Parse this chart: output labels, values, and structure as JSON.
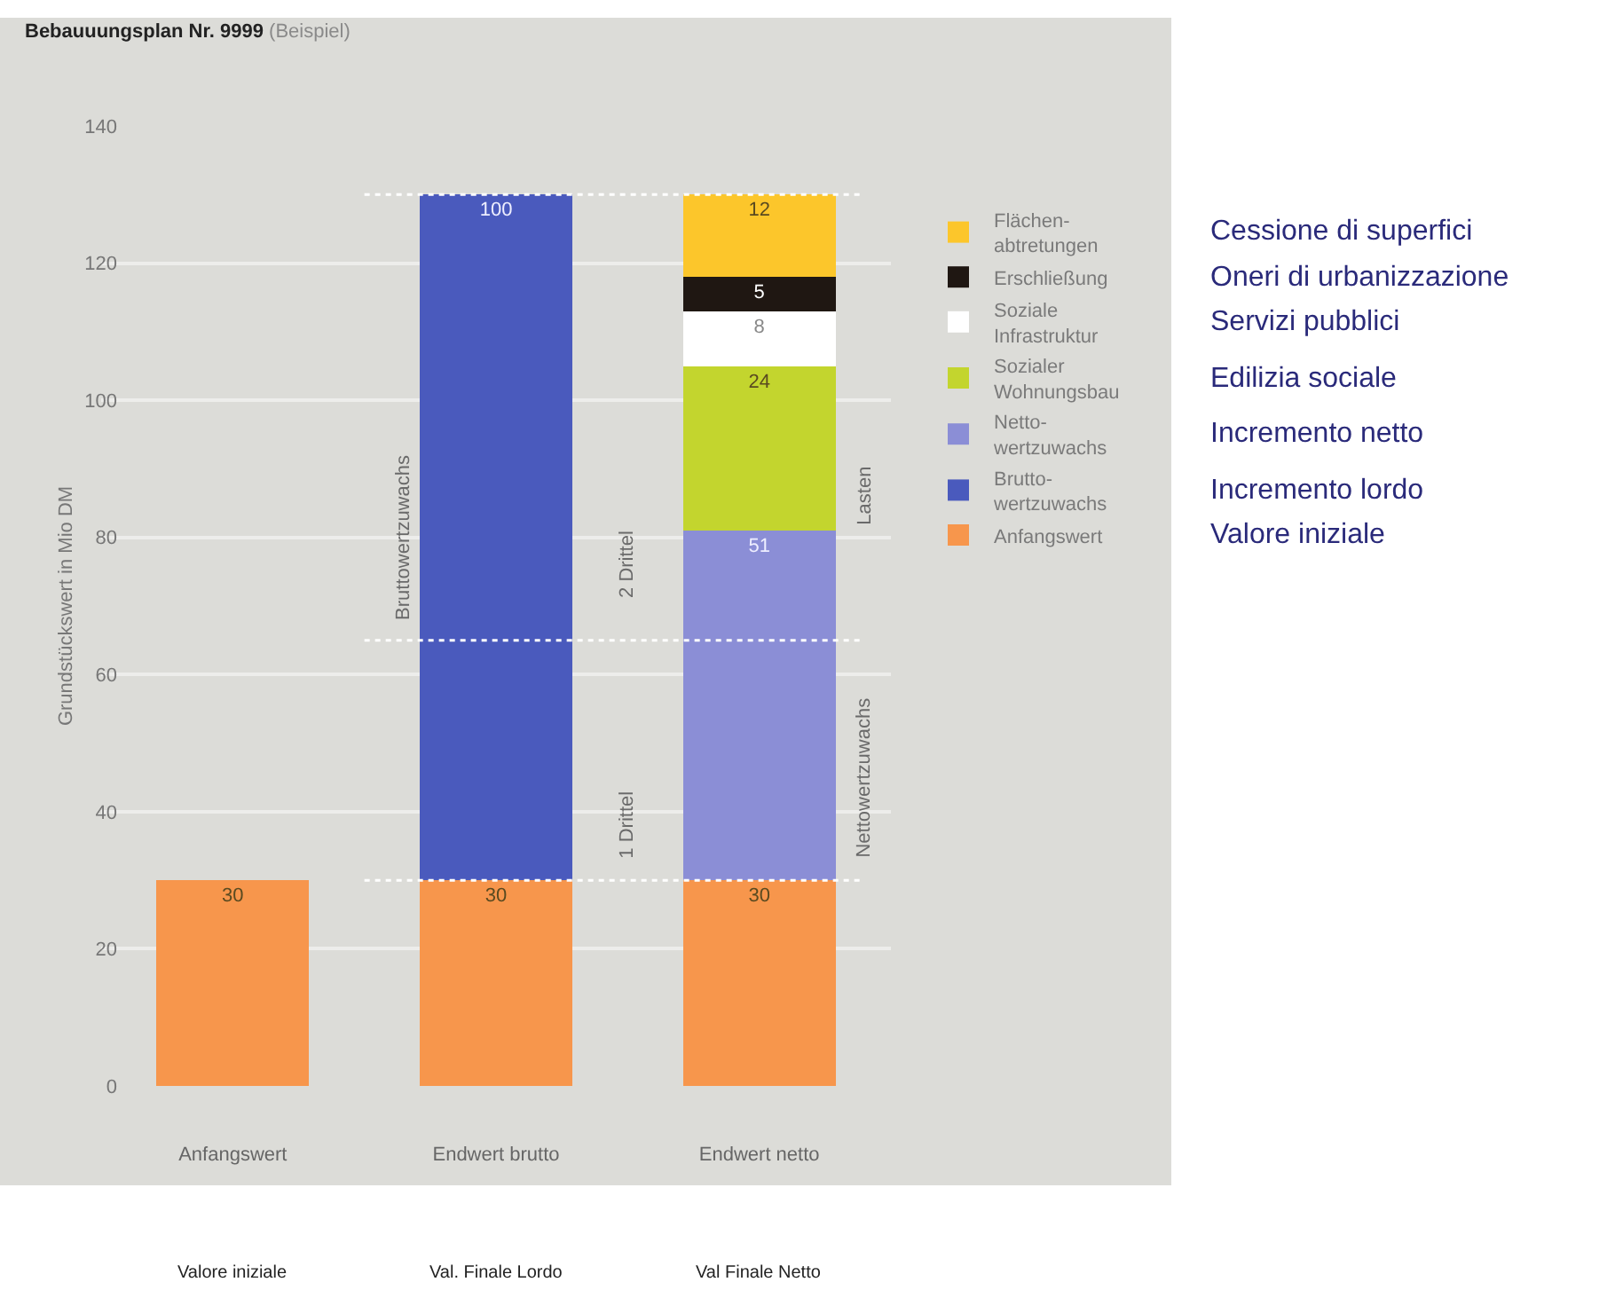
{
  "chart_data": {
    "type": "bar",
    "title": "Bebauuungsplan Nr. 9999",
    "subtitle": "(Beispiel)",
    "ylabel": "Grundstückswert in Mio DM",
    "categories": [
      "Anfangswert",
      "Endwert brutto",
      "Endwert netto"
    ],
    "stacked": true,
    "ylim": [
      0,
      140
    ],
    "yticks": [
      0,
      20,
      40,
      60,
      80,
      100,
      120,
      140
    ],
    "grid": "y",
    "legend": "right",
    "series": [
      {
        "name": "Anfangswert",
        "color": "#f7964c",
        "values": [
          30,
          30,
          30
        ],
        "value_labels": [
          "30",
          "30",
          "30"
        ]
      },
      {
        "name": "Brutto-\nwertzuwachs",
        "color": "#4a5abd",
        "values": [
          null,
          100,
          null
        ],
        "value_labels": [
          null,
          "100",
          null
        ]
      },
      {
        "name": "Netto-\nwertzuwachs",
        "color": "#8b8ed6",
        "values": [
          null,
          null,
          51
        ],
        "value_labels": [
          null,
          null,
          "51"
        ]
      },
      {
        "name": "Sozialer\nWohnungsbau",
        "color": "#c3d52e",
        "values": [
          null,
          null,
          24
        ],
        "value_labels": [
          null,
          null,
          "24"
        ]
      },
      {
        "name": "Soziale\nInfrastruktur",
        "color": "#ffffff",
        "values": [
          null,
          null,
          8
        ],
        "value_labels": [
          null,
          null,
          "8"
        ]
      },
      {
        "name": "Erschließung",
        "color": "#1f1712",
        "values": [
          null,
          null,
          5
        ],
        "value_labels": [
          null,
          null,
          "5"
        ]
      },
      {
        "name": "Flächen-\nabtretungen",
        "color": "#fcc62b",
        "values": [
          null,
          null,
          12
        ],
        "value_labels": [
          null,
          null,
          "12"
        ]
      }
    ],
    "ref_lines": [
      {
        "axis": "y",
        "value": 130,
        "color": "#ffffff",
        "line_style": "dashed"
      },
      {
        "axis": "y",
        "value": 65,
        "color": "#ffffff",
        "line_style": "dashed"
      },
      {
        "axis": "y",
        "value": 30,
        "color": "#ffffff",
        "line_style": "dashed"
      }
    ],
    "annotations": [
      "Bruttowertzuwachs",
      "2 Drittel",
      "1 Drittel",
      "Nettowertzuwachs",
      "Lasten",
      "Cessione di superfici",
      "Oneri di urbanizzazione",
      "Servizi pubblici",
      "Edilizia sociale",
      "Incremento netto",
      "Incremento lordo",
      "Valore iniziale",
      "Valore iniziale",
      "Val. Finale Lordo",
      "Val Finale Netto"
    ]
  }
}
